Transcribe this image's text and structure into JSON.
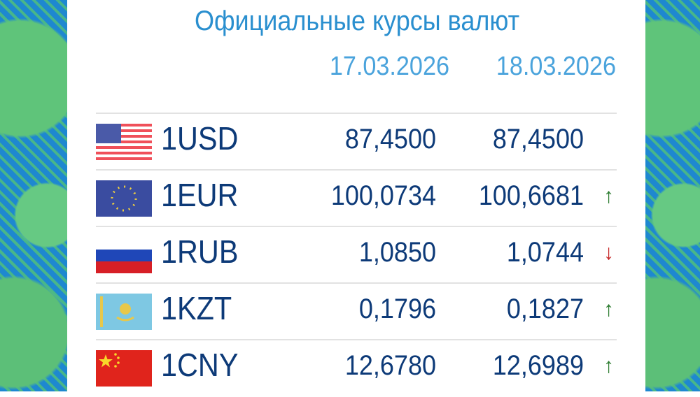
{
  "title": "Официальные курсы валют",
  "dates": [
    "17.03.2026",
    "18.03.2026"
  ],
  "colors": {
    "up": "#2e7d32",
    "down": "#c62828",
    "text": "#0d3a78",
    "title": "#2a8fcf"
  },
  "rows": [
    {
      "flag": "us-flag-icon",
      "code": "1USD",
      "prev": "87,4500",
      "curr": "87,4500",
      "trend": "none",
      "arrow": ""
    },
    {
      "flag": "eu-flag-icon",
      "code": "1EUR",
      "prev": "100,0734",
      "curr": "100,6681",
      "trend": "up",
      "arrow": "↑"
    },
    {
      "flag": "ru-flag-icon",
      "code": "1RUB",
      "prev": "1,0850",
      "curr": "1,0744",
      "trend": "down",
      "arrow": "↓"
    },
    {
      "flag": "kz-flag-icon",
      "code": "1KZT",
      "prev": "0,1796",
      "curr": "0,1827",
      "trend": "up",
      "arrow": "↑"
    },
    {
      "flag": "cn-flag-icon",
      "code": "1CNY",
      "prev": "12,6780",
      "curr": "12,6989",
      "trend": "up",
      "arrow": "↑"
    }
  ]
}
